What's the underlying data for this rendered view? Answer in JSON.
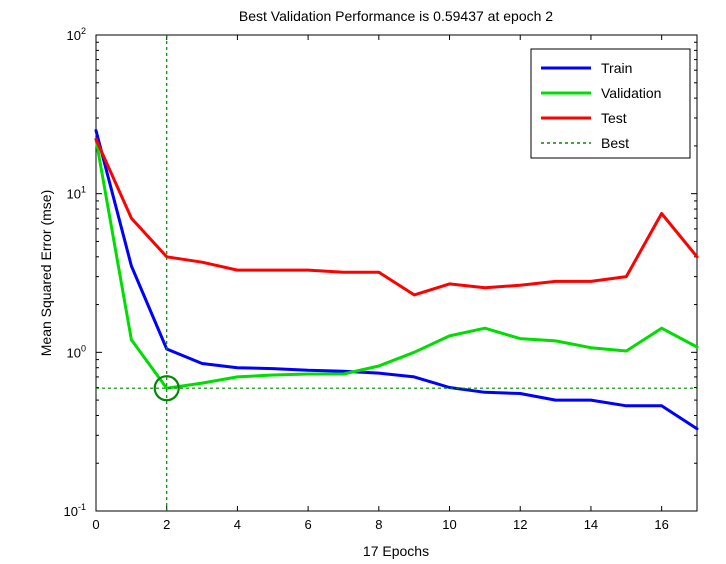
{
  "chart_data": {
    "type": "line",
    "title": "Best Validation Performance is 0.59437 at epoch 2",
    "xlabel": "17 Epochs",
    "ylabel": "Mean Squared Error  (mse)",
    "xlim": [
      0,
      17
    ],
    "ylim": [
      0.1,
      100
    ],
    "yscale": "log",
    "xticks": [
      0,
      2,
      4,
      6,
      8,
      10,
      12,
      14,
      16
    ],
    "yticks": [
      {
        "value": 0.1,
        "base": "10",
        "exp": "-1"
      },
      {
        "value": 1,
        "base": "10",
        "exp": "0"
      },
      {
        "value": 10,
        "base": "10",
        "exp": "1"
      },
      {
        "value": 100,
        "base": "10",
        "exp": "2"
      }
    ],
    "x": [
      0,
      1,
      2,
      3,
      4,
      5,
      6,
      7,
      8,
      9,
      10,
      11,
      12,
      13,
      14,
      15,
      16,
      17
    ],
    "series": [
      {
        "name": "Train",
        "color": "#0000ff",
        "values": [
          25,
          3.5,
          1.05,
          0.85,
          0.8,
          0.79,
          0.77,
          0.76,
          0.74,
          0.7,
          0.6,
          0.56,
          0.55,
          0.5,
          0.5,
          0.46,
          0.46,
          0.33
        ]
      },
      {
        "name": "Validation",
        "color": "#00dd00",
        "values": [
          22,
          1.2,
          0.59437,
          0.64,
          0.7,
          0.72,
          0.73,
          0.73,
          0.82,
          1.0,
          1.27,
          1.42,
          1.22,
          1.18,
          1.07,
          1.02,
          1.42,
          1.08
        ]
      },
      {
        "name": "Test",
        "color": "#ff0000",
        "values": [
          22,
          7.0,
          4.0,
          3.7,
          3.3,
          3.3,
          3.3,
          3.2,
          3.2,
          2.3,
          2.7,
          2.55,
          2.65,
          2.8,
          2.8,
          3.0,
          7.5,
          4.0
        ]
      }
    ],
    "best": {
      "name": "Best",
      "color": "#008800",
      "epoch": 2,
      "value": 0.59437
    },
    "legend": {
      "position": "top-right"
    },
    "grid": false
  }
}
